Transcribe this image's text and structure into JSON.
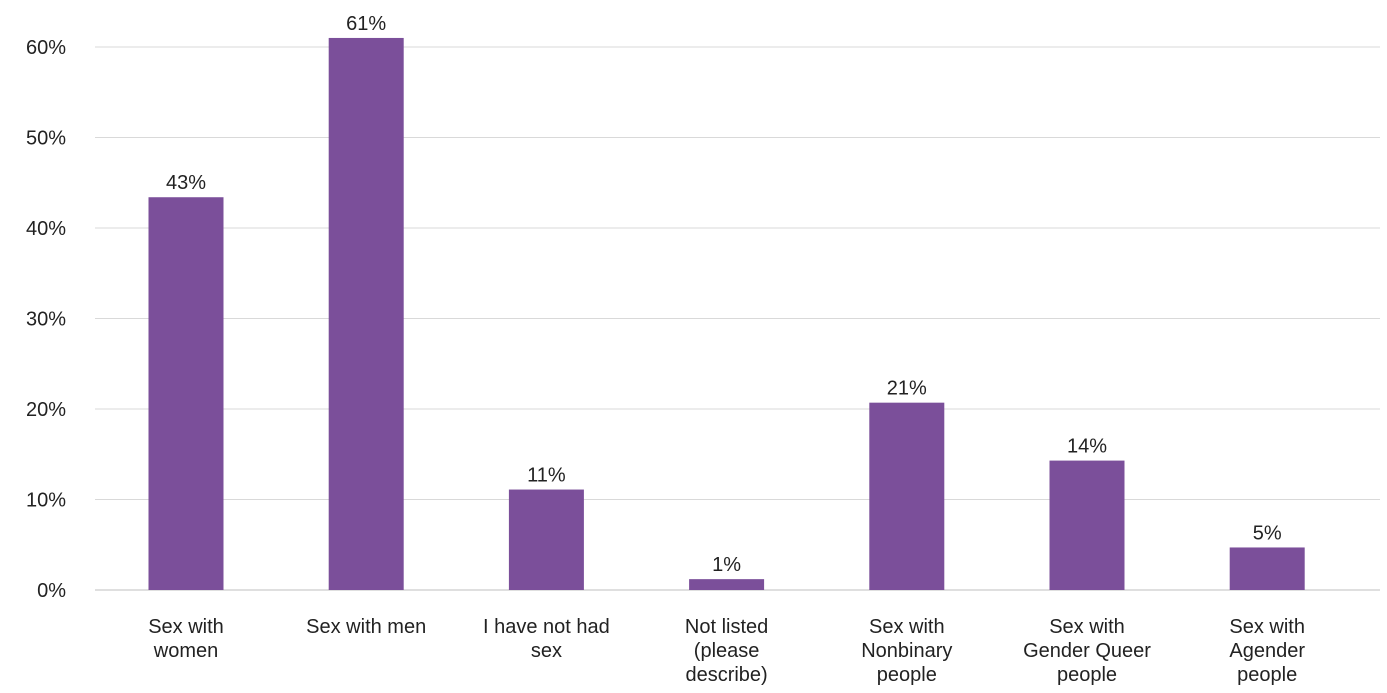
{
  "chart_data": {
    "type": "bar",
    "title": "",
    "xlabel": "",
    "ylabel": "",
    "ylim": [
      0,
      60
    ],
    "yticks": [
      0,
      10,
      20,
      30,
      40,
      50,
      60
    ],
    "ytick_labels": [
      "0%",
      "10%",
      "20%",
      "30%",
      "40%",
      "50%",
      "60%"
    ],
    "grid": true,
    "legend": "none",
    "bar_color": "#7b4f9a",
    "categories": [
      [
        "Sex with",
        "women"
      ],
      [
        "Sex with men"
      ],
      [
        "I have not had",
        "sex"
      ],
      [
        "Not listed",
        "(please",
        "describe)"
      ],
      [
        "Sex with",
        "Nonbinary",
        "people"
      ],
      [
        "Sex with",
        "Gender Queer",
        "people"
      ],
      [
        "Sex with",
        "Agender",
        "people"
      ]
    ],
    "values": [
      43.4,
      61,
      11.1,
      1.2,
      20.7,
      14.3,
      4.7
    ],
    "data_labels": [
      "43%",
      "61%",
      "11%",
      "1%",
      "21%",
      "14%",
      "5%"
    ]
  }
}
